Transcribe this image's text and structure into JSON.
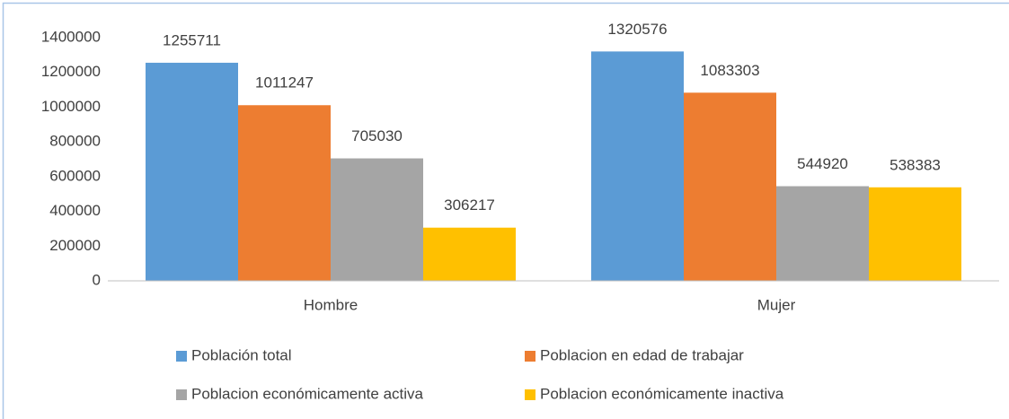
{
  "chart_data": {
    "type": "bar",
    "categories": [
      "Hombre",
      "Mujer"
    ],
    "series": [
      {
        "name": "Población total",
        "color": "#5b9bd5",
        "values": [
          1255711,
          1320576
        ]
      },
      {
        "name": "Poblacion en edad de trabajar",
        "color": "#ed7d31",
        "values": [
          1011247,
          1083303
        ]
      },
      {
        "name": "Poblacion económicamente activa",
        "color": "#a5a5a5",
        "values": [
          705030,
          544920
        ]
      },
      {
        "name": "Poblacion económicamente inactiva",
        "color": "#ffc000",
        "values": [
          306217,
          538383
        ]
      }
    ],
    "ylim": [
      0,
      1400000
    ],
    "yticks": [
      0,
      200000,
      400000,
      600000,
      800000,
      1000000,
      1200000,
      1400000
    ],
    "grid": false,
    "legend": "bottom"
  }
}
